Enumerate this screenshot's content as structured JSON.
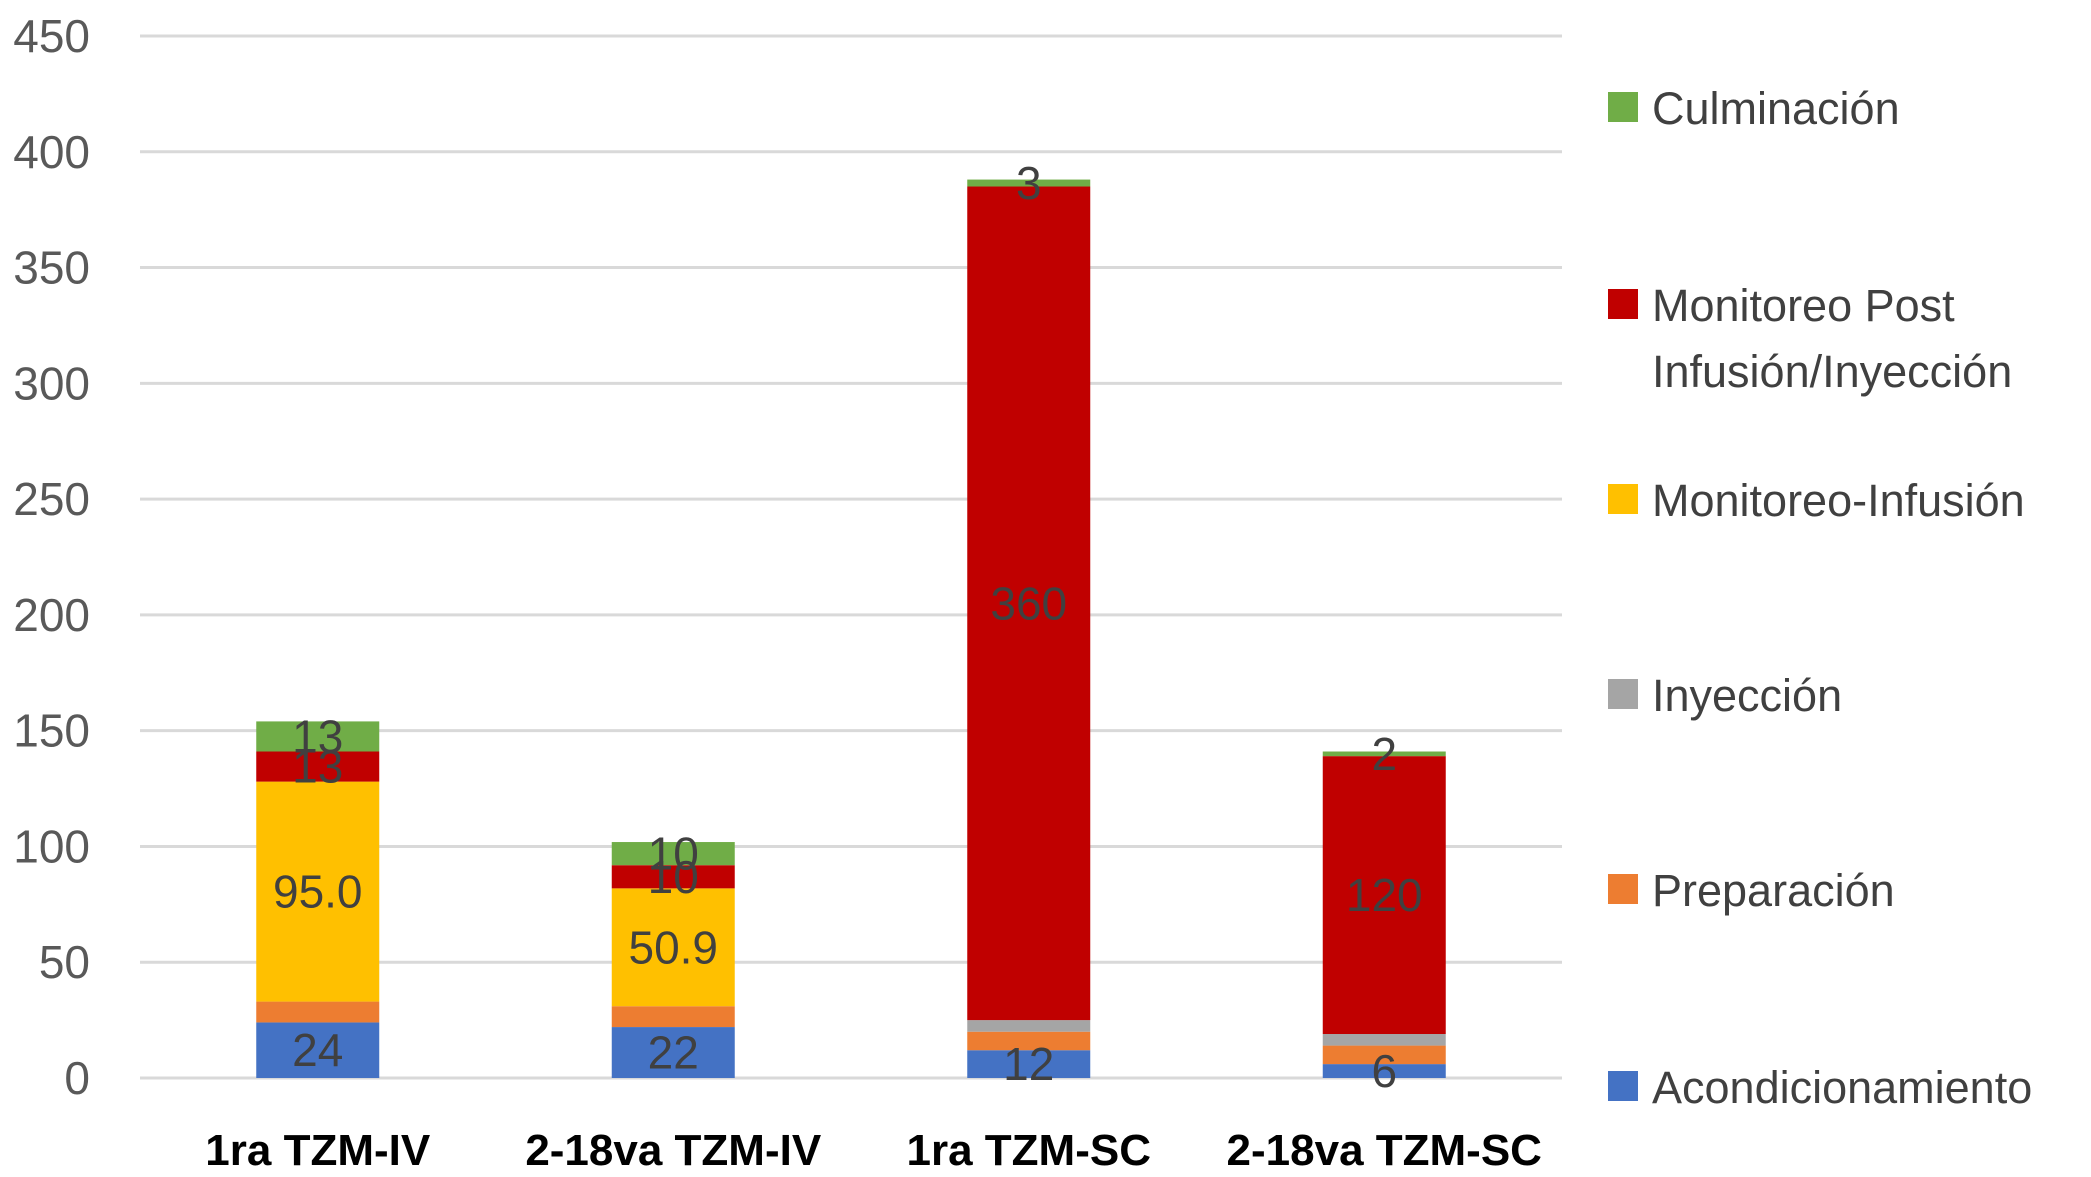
{
  "chart_data": {
    "type": "bar",
    "stacked": true,
    "categories": [
      "1ra TZM-IV",
      "2-18va TZM-IV",
      "1ra TZM-SC",
      "2-18va TZM-SC"
    ],
    "ylim": [
      0,
      450
    ],
    "yticks": [
      0,
      50,
      100,
      150,
      200,
      250,
      300,
      350,
      400,
      450
    ],
    "grid": true,
    "legend_position": "right",
    "series": [
      {
        "name": "Acondicionamiento",
        "color": "#4472c4",
        "values": [
          24,
          22,
          12,
          6
        ],
        "labels": [
          "24",
          "22",
          "12",
          "6"
        ]
      },
      {
        "name": "Preparación",
        "color": "#ed7d31",
        "values": [
          9,
          9,
          8,
          8
        ],
        "labels": [
          "",
          "",
          "",
          ""
        ]
      },
      {
        "name": "Inyección",
        "color": "#a5a5a5",
        "values": [
          0,
          0,
          5,
          5
        ],
        "labels": [
          "",
          "",
          "",
          ""
        ]
      },
      {
        "name": "Monitoreo-Infusión",
        "color": "#ffc000",
        "values": [
          95.0,
          50.9,
          0,
          0
        ],
        "labels": [
          "95.0",
          "50.9",
          "",
          ""
        ]
      },
      {
        "name": "Monitoreo Post Infusión/Inyección",
        "color": "#c00000",
        "values": [
          13,
          10,
          360,
          120
        ],
        "labels": [
          "13",
          "10",
          "360",
          "120"
        ]
      },
      {
        "name": "Culminación",
        "color": "#70ad47",
        "values": [
          13,
          10,
          3,
          2
        ],
        "labels": [
          "13",
          "10",
          "3",
          "2"
        ]
      }
    ]
  }
}
